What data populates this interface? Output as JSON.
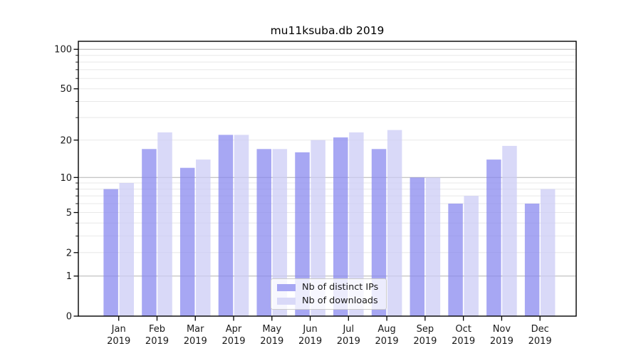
{
  "chart_data": {
    "type": "bar",
    "title": "mu11ksuba.db 2019",
    "categories": [
      "Jan",
      "Feb",
      "Mar",
      "Apr",
      "May",
      "Jun",
      "Jul",
      "Aug",
      "Sep",
      "Oct",
      "Nov",
      "Dec"
    ],
    "x_tick_second_line": "2019",
    "series": [
      {
        "name": "Nb of distinct IPs",
        "values": [
          8,
          17,
          12,
          22,
          17,
          16,
          21,
          17,
          10,
          6,
          14,
          6
        ],
        "color": "#8585ee",
        "alpha": 0.72
      },
      {
        "name": "Nb of downloads",
        "values": [
          9,
          23,
          14,
          22,
          17,
          20,
          23,
          24,
          10,
          7,
          18,
          8
        ],
        "color": "#cacaf5",
        "alpha": 0.72
      }
    ],
    "yscale": "log1p",
    "ylim": [
      0,
      115
    ],
    "yticks": [
      100,
      50,
      20,
      10,
      5,
      2,
      1,
      0
    ],
    "ytick_labels": [
      "100",
      "50",
      "20",
      "10",
      "5",
      "2",
      "1",
      "0"
    ],
    "minor_axis_ticks": [
      3,
      4,
      6,
      7,
      8,
      9,
      30,
      40,
      60,
      70,
      80,
      90
    ],
    "major_gridlines": [
      1,
      10,
      100
    ],
    "minor_gridlines": [
      2,
      3,
      4,
      5,
      6,
      7,
      8,
      9,
      20,
      30,
      40,
      50,
      60,
      70,
      80,
      90
    ],
    "grid": true,
    "legend_position": "lower center",
    "colors": {
      "grid_minor": "#e8e8e8",
      "grid_major": "#b3b3b3",
      "spine": "#000000",
      "tick_text": "#1a1a1a"
    }
  },
  "legend": {
    "items": [
      {
        "label": "Nb of distinct IPs",
        "swatch": "#a7a7f3"
      },
      {
        "label": "Nb of downloads",
        "swatch": "#d9d9f8"
      }
    ]
  }
}
